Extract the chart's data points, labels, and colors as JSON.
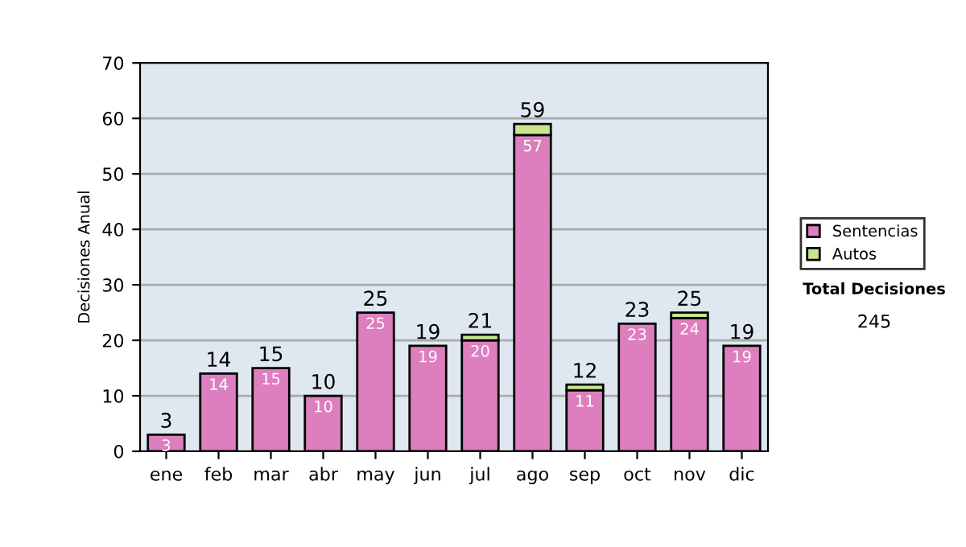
{
  "chart_data": {
    "type": "bar",
    "stacked": true,
    "ylabel": "Decisiones Anual",
    "categories": [
      "ene",
      "feb",
      "mar",
      "abr",
      "may",
      "jun",
      "jul",
      "ago",
      "sep",
      "oct",
      "nov",
      "dic"
    ],
    "series": [
      {
        "name": "Sentencias",
        "color": "#dd7fbf",
        "values": [
          3,
          14,
          15,
          10,
          25,
          19,
          20,
          57,
          11,
          23,
          24,
          19
        ],
        "value_labels": [
          "3",
          "14",
          "15",
          "10",
          "25",
          "19",
          "20",
          "57",
          "11",
          "23",
          "24",
          "19"
        ]
      },
      {
        "name": "Autos",
        "color": "#c8e68c",
        "values": [
          null,
          null,
          null,
          null,
          null,
          null,
          1,
          2,
          1,
          null,
          1,
          null
        ]
      }
    ],
    "totals": [
      "3",
      "14",
      "15",
      "10",
      "25",
      "19",
      "21",
      "59",
      "12",
      "23",
      "25",
      "19"
    ],
    "ylim": [
      0,
      70
    ],
    "yticks": [
      0,
      10,
      20,
      30,
      40,
      50,
      60,
      70
    ],
    "grid": "y",
    "legend": "right",
    "annotations": [
      "Total Decisiones",
      "245"
    ]
  }
}
